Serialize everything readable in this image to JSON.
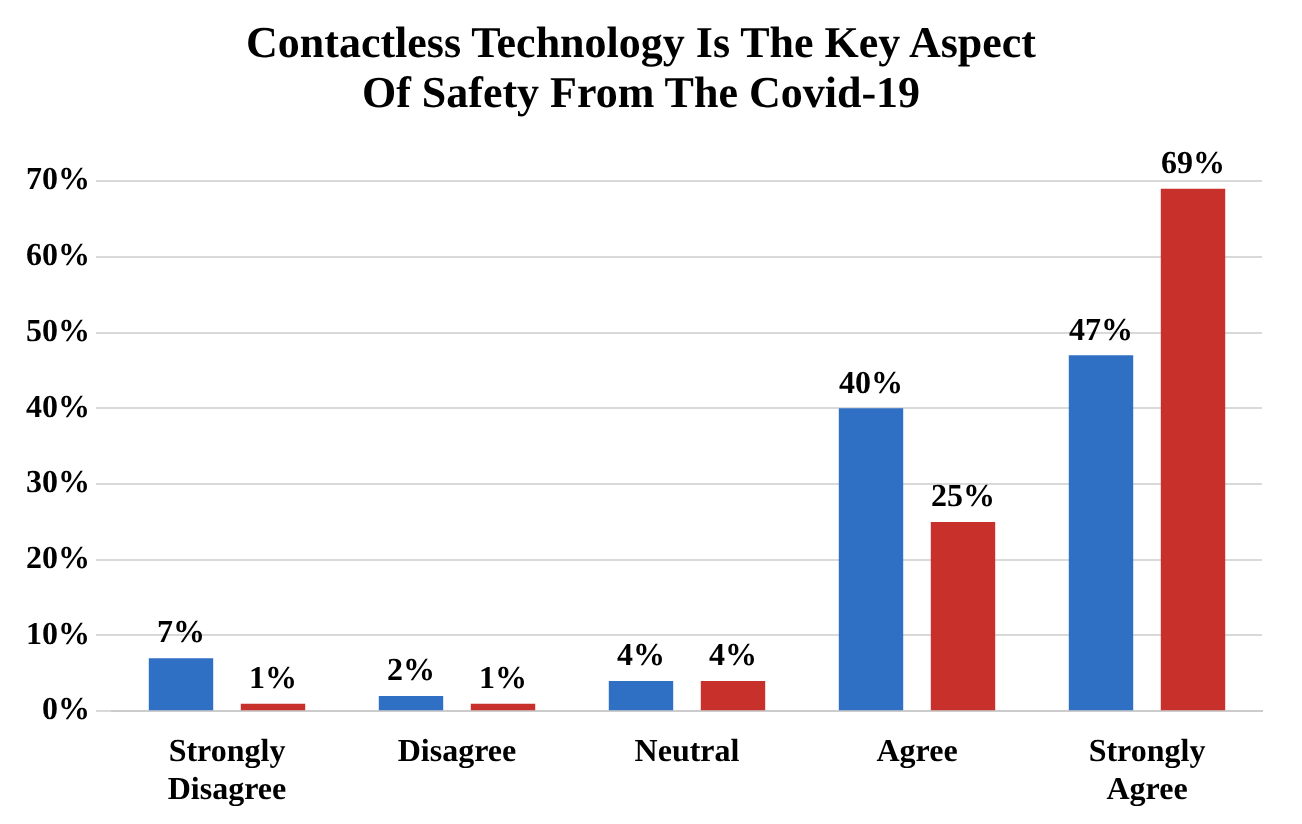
{
  "chart_data": {
    "type": "bar",
    "title": "Contactless Technology Is The Key Aspect\nOf Safety From The Covid-19",
    "categories": [
      "Strongly Disagree",
      "Disagree",
      "Neutral",
      "Agree",
      "Strongly Agree"
    ],
    "series": [
      {
        "color": "#2f6fc4",
        "values": [
          7,
          2,
          4,
          40,
          47
        ],
        "value_labels": [
          "7%",
          "2%",
          "4%",
          "40%",
          "47%"
        ]
      },
      {
        "color": "#c8302c",
        "values": [
          1,
          1,
          4,
          25,
          69
        ],
        "value_labels": [
          "1%",
          "1%",
          "4%",
          "25%",
          "69%"
        ]
      }
    ],
    "ylim": [
      0,
      70
    ],
    "yticks": [
      {
        "value": 0,
        "label": "0%"
      },
      {
        "value": 10,
        "label": "10%"
      },
      {
        "value": 20,
        "label": "20%"
      },
      {
        "value": 30,
        "label": "30%"
      },
      {
        "value": 40,
        "label": "40%"
      },
      {
        "value": 50,
        "label": "50%"
      },
      {
        "value": 60,
        "label": "60%"
      },
      {
        "value": 70,
        "label": "70%"
      }
    ],
    "grid": "y",
    "legend": false
  }
}
